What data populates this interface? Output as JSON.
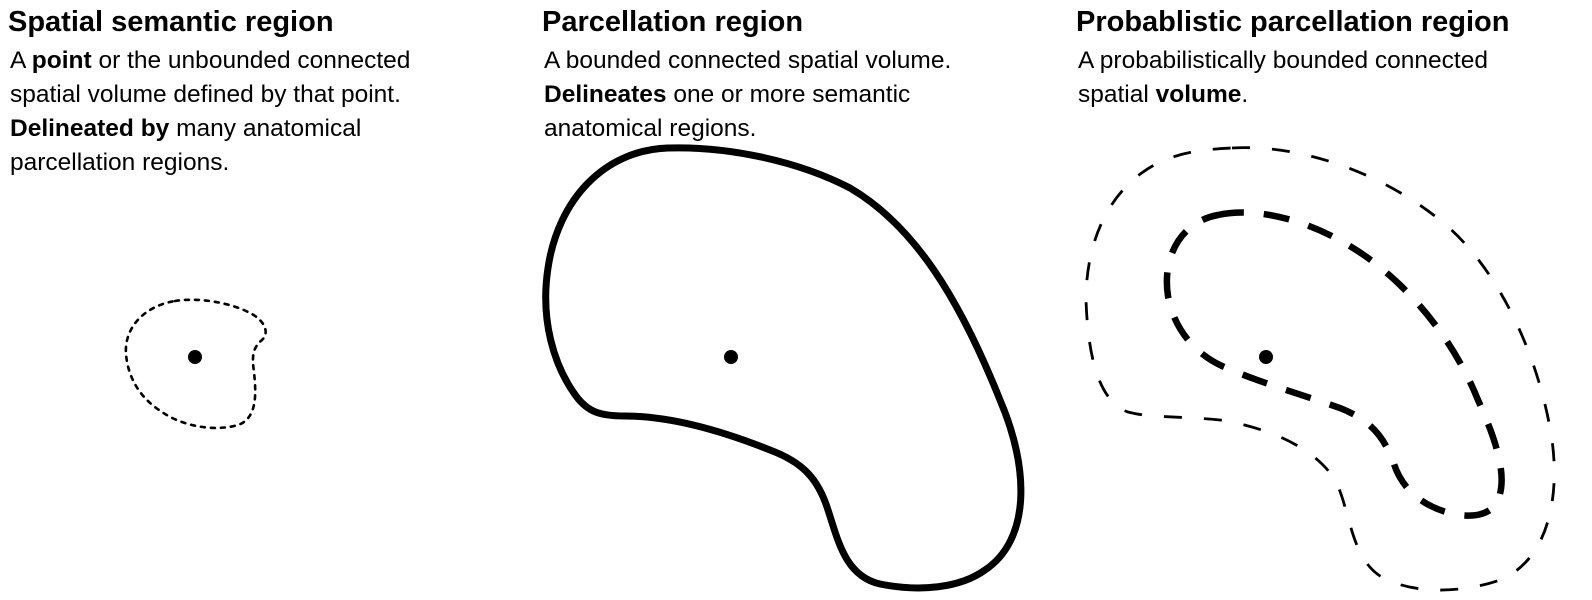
{
  "panels": [
    {
      "title": "Spatial semantic region",
      "lines": [
        [
          {
            "t": "A ",
            "b": false
          },
          {
            "t": "point",
            "b": true
          },
          {
            "t": " or the unbounded connected",
            "b": false
          }
        ],
        [
          {
            "t": "spatial volume defined by that point.",
            "b": false
          }
        ],
        [
          {
            "t": "Delineated by",
            "b": true
          },
          {
            "t": " many anatomical",
            "b": false
          }
        ],
        [
          {
            "t": "parcellation regions.",
            "b": false
          }
        ]
      ]
    },
    {
      "title": "Parcellation region",
      "lines": [
        [
          {
            "t": "A bounded connected spatial volume.",
            "b": false
          }
        ],
        [
          {
            "t": "Delineates",
            "b": true
          },
          {
            "t": " one or more semantic",
            "b": false
          }
        ],
        [
          {
            "t": "anatomical regions.",
            "b": false
          }
        ]
      ]
    },
    {
      "title": "Probablistic parcellation region",
      "lines": [
        [
          {
            "t": "A probabilistically bounded connected",
            "b": false
          }
        ],
        [
          {
            "t": "spatial ",
            "b": false
          },
          {
            "t": "volume",
            "b": true
          },
          {
            "t": ".",
            "b": false
          }
        ]
      ]
    }
  ],
  "colors": {
    "stroke": "#000000",
    "background": "#ffffff"
  }
}
